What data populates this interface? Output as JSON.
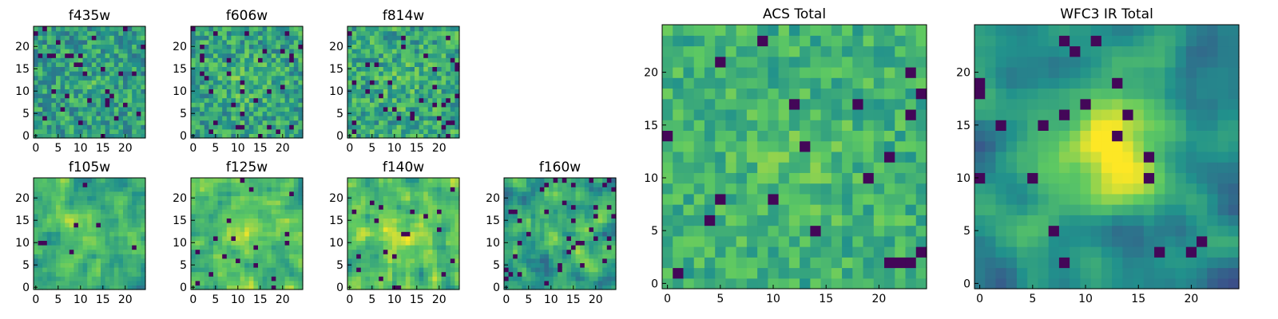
{
  "figure": {
    "background": "#ffffff"
  },
  "colormap": {
    "name": "viridis",
    "stops": [
      "#440154",
      "#3b528b",
      "#21918c",
      "#5ec962",
      "#fde725"
    ]
  },
  "chart_data": [
    {
      "type": "heatmap",
      "title": "f435w",
      "grid": [
        25,
        25
      ],
      "xlim": [
        0,
        24
      ],
      "ylim": [
        0,
        24
      ],
      "xticks": [
        0,
        5,
        10,
        15,
        20
      ],
      "yticks": [
        0,
        5,
        10,
        15,
        20
      ],
      "seed": 11,
      "smooth": 0,
      "center": 0.05,
      "tone": 0.56,
      "spread": 0.2,
      "dark": 0.05
    },
    {
      "type": "heatmap",
      "title": "f606w",
      "grid": [
        25,
        25
      ],
      "xlim": [
        0,
        24
      ],
      "ylim": [
        0,
        24
      ],
      "xticks": [
        0,
        5,
        10,
        15,
        20
      ],
      "yticks": [
        0,
        5,
        10,
        15,
        20
      ],
      "seed": 23,
      "smooth": 0,
      "center": 0.1,
      "tone": 0.58,
      "spread": 0.2,
      "dark": 0.05
    },
    {
      "type": "heatmap",
      "title": "f814w",
      "grid": [
        25,
        25
      ],
      "xlim": [
        0,
        24
      ],
      "ylim": [
        0,
        24
      ],
      "xticks": [
        0,
        5,
        10,
        15,
        20
      ],
      "yticks": [
        0,
        5,
        10,
        15,
        20
      ],
      "seed": 37,
      "smooth": 0,
      "center": 0.05,
      "tone": 0.6,
      "spread": 0.2,
      "dark": 0.05
    },
    {
      "type": "heatmap",
      "title": "f105w",
      "grid": [
        25,
        25
      ],
      "xlim": [
        0,
        24
      ],
      "ylim": [
        0,
        24
      ],
      "xticks": [
        0,
        5,
        10,
        15,
        20
      ],
      "yticks": [
        0,
        5,
        10,
        15,
        20
      ],
      "seed": 41,
      "smooth": 1,
      "center": 0.15,
      "tone": 0.62,
      "spread": 0.24,
      "dark": 0.02
    },
    {
      "type": "heatmap",
      "title": "f125w",
      "grid": [
        25,
        25
      ],
      "xlim": [
        0,
        24
      ],
      "ylim": [
        0,
        24
      ],
      "xticks": [
        0,
        5,
        10,
        15,
        20
      ],
      "yticks": [
        0,
        5,
        10,
        15,
        20
      ],
      "seed": 53,
      "smooth": 1,
      "center": 0.12,
      "tone": 0.68,
      "spread": 0.24,
      "dark": 0.02
    },
    {
      "type": "heatmap",
      "title": "f140w",
      "grid": [
        25,
        25
      ],
      "xlim": [
        0,
        24
      ],
      "ylim": [
        0,
        24
      ],
      "xticks": [
        0,
        5,
        10,
        15,
        20
      ],
      "yticks": [
        0,
        5,
        10,
        15,
        20
      ],
      "seed": 67,
      "smooth": 1,
      "center": 0.12,
      "tone": 0.68,
      "spread": 0.24,
      "dark": 0.02
    },
    {
      "type": "heatmap",
      "title": "f160w",
      "grid": [
        25,
        25
      ],
      "xlim": [
        0,
        24
      ],
      "ylim": [
        0,
        24
      ],
      "xticks": [
        0,
        5,
        10,
        15,
        20
      ],
      "yticks": [
        0,
        5,
        10,
        15,
        20
      ],
      "seed": 79,
      "smooth": 1,
      "center": 0.12,
      "tone": 0.58,
      "spread": 0.26,
      "dark": 0.06
    },
    {
      "type": "heatmap",
      "title": "ACS Total",
      "grid": [
        25,
        25
      ],
      "xlim": [
        0,
        24
      ],
      "ylim": [
        0,
        24
      ],
      "xticks": [
        0,
        5,
        10,
        15,
        20
      ],
      "yticks": [
        0,
        5,
        10,
        15,
        20
      ],
      "seed": 97,
      "smooth": 0,
      "center": 0.08,
      "tone": 0.64,
      "spread": 0.14,
      "dark": 0.03
    },
    {
      "type": "heatmap",
      "title": "WFC3 IR Total",
      "grid": [
        25,
        25
      ],
      "xlim": [
        0,
        24
      ],
      "ylim": [
        0,
        24
      ],
      "xticks": [
        0,
        5,
        10,
        15,
        20
      ],
      "yticks": [
        0,
        5,
        10,
        15,
        20
      ],
      "seed": 131,
      "smooth": 2,
      "center": 0.6,
      "tone": 0.46,
      "spread": 0.22,
      "dark": 0.04
    }
  ]
}
